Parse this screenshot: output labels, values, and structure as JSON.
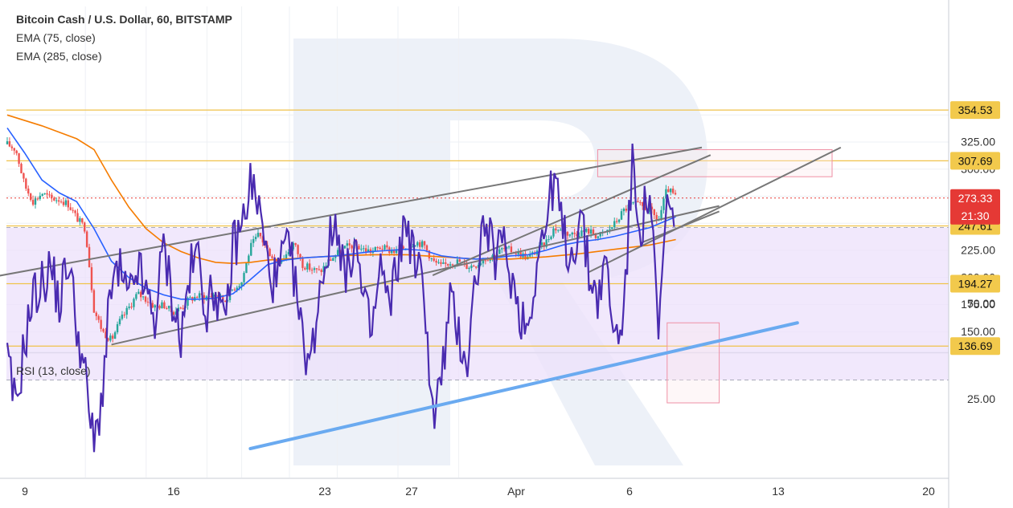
{
  "colors": {
    "candle_up": "#26a69a",
    "candle_down": "#ef5350",
    "ema75": "#2962ff",
    "ema285": "#f57c00",
    "hline": "#f0c24a",
    "hline_label_bg": "#f2c94c",
    "trendline": "#777777",
    "rsi_line": "#4a2bb0",
    "rsi_band": "#ece0fb",
    "rsi_trend": "#6aaaf0",
    "box": "#ef8fa4",
    "price_tag": "#e53935",
    "grid": "#eef0f4",
    "watermark": "#dfe6f3"
  },
  "chart_data": [
    {
      "type": "candlestick",
      "title": "Bitcoin Cash / U.S. Dollar, 60, BITSTAMP",
      "legend": [
        "EMA (75, close)",
        "EMA (285, close)"
      ],
      "x_ticks": [
        "9",
        "16",
        "23",
        "27",
        "Apr",
        "6",
        "13",
        "20"
      ],
      "y_ticks": [
        150.0,
        175.0,
        200.0,
        225.0,
        250.0,
        275.0,
        300.0,
        325.0,
        350.0
      ],
      "ylim": [
        134,
        362
      ],
      "grid": true,
      "horizontal_levels": [
        354.53,
        307.69,
        247.61,
        194.27,
        136.69
      ],
      "last_price": 273.33,
      "countdown": "21:30",
      "price_path": [
        [
          0,
          323
        ],
        [
          1,
          318
        ],
        [
          2,
          285
        ],
        [
          3,
          270
        ],
        [
          4,
          278
        ],
        [
          5,
          273
        ],
        [
          6,
          272
        ],
        [
          7,
          268
        ],
        [
          8,
          255
        ],
        [
          9,
          245
        ],
        [
          10,
          170
        ],
        [
          11,
          150
        ],
        [
          12,
          142
        ],
        [
          13,
          160
        ],
        [
          14,
          172
        ],
        [
          15,
          185
        ],
        [
          16,
          180
        ],
        [
          17,
          173
        ],
        [
          18,
          175
        ],
        [
          19,
          168
        ],
        [
          20,
          172
        ],
        [
          21,
          180
        ],
        [
          22,
          183
        ],
        [
          23,
          182
        ],
        [
          24,
          185
        ],
        [
          25,
          178
        ],
        [
          26,
          190
        ],
        [
          27,
          196
        ],
        [
          28,
          228
        ],
        [
          29,
          240
        ],
        [
          30,
          225
        ],
        [
          31,
          215
        ],
        [
          32,
          220
        ],
        [
          33,
          232
        ],
        [
          34,
          212
        ],
        [
          35,
          208
        ],
        [
          36,
          205
        ],
        [
          37,
          215
        ],
        [
          38,
          222
        ],
        [
          39,
          228
        ],
        [
          40,
          230
        ],
        [
          41,
          226
        ],
        [
          42,
          224
        ],
        [
          43,
          228
        ],
        [
          44,
          225
        ],
        [
          45,
          224
        ],
        [
          46,
          228
        ],
        [
          47,
          233
        ],
        [
          48,
          230
        ],
        [
          49,
          215
        ],
        [
          50,
          210
        ],
        [
          51,
          214
        ],
        [
          52,
          215
        ],
        [
          53,
          210
        ],
        [
          54,
          212
        ],
        [
          55,
          218
        ],
        [
          56,
          220
        ],
        [
          57,
          226
        ],
        [
          58,
          225
        ],
        [
          59,
          222
        ],
        [
          60,
          218
        ],
        [
          61,
          225
        ],
        [
          62,
          232
        ],
        [
          63,
          246
        ],
        [
          64,
          242
        ],
        [
          65,
          240
        ],
        [
          66,
          242
        ],
        [
          67,
          243
        ],
        [
          68,
          238
        ],
        [
          69,
          242
        ],
        [
          70,
          250
        ],
        [
          71,
          262
        ],
        [
          72,
          268
        ],
        [
          73,
          266
        ],
        [
          74,
          262
        ],
        [
          75,
          252
        ],
        [
          76,
          282
        ],
        [
          77,
          274
        ]
      ],
      "ema75": [
        [
          0,
          338
        ],
        [
          2,
          315
        ],
        [
          4,
          290
        ],
        [
          6,
          278
        ],
        [
          8,
          270
        ],
        [
          10,
          245
        ],
        [
          12,
          215
        ],
        [
          14,
          200
        ],
        [
          16,
          190
        ],
        [
          18,
          184
        ],
        [
          20,
          180
        ],
        [
          22,
          180
        ],
        [
          24,
          181
        ],
        [
          26,
          185
        ],
        [
          28,
          198
        ],
        [
          30,
          212
        ],
        [
          32,
          216
        ],
        [
          34,
          218
        ],
        [
          36,
          219
        ],
        [
          38,
          220
        ],
        [
          40,
          222
        ],
        [
          42,
          224
        ],
        [
          44,
          225
        ],
        [
          46,
          226
        ],
        [
          48,
          225
        ],
        [
          50,
          220
        ],
        [
          52,
          218
        ],
        [
          54,
          217
        ],
        [
          56,
          218
        ],
        [
          58,
          220
        ],
        [
          60,
          221
        ],
        [
          62,
          225
        ],
        [
          64,
          230
        ],
        [
          66,
          233
        ],
        [
          68,
          235
        ],
        [
          70,
          238
        ],
        [
          72,
          242
        ],
        [
          74,
          246
        ],
        [
          77,
          256
        ]
      ],
      "ema285": [
        [
          0,
          350
        ],
        [
          4,
          340
        ],
        [
          8,
          328
        ],
        [
          10,
          318
        ],
        [
          12,
          290
        ],
        [
          14,
          265
        ],
        [
          16,
          245
        ],
        [
          18,
          232
        ],
        [
          20,
          224
        ],
        [
          22,
          218
        ],
        [
          24,
          214
        ],
        [
          26,
          213
        ],
        [
          28,
          214
        ],
        [
          30,
          216
        ],
        [
          34,
          218
        ],
        [
          38,
          220
        ],
        [
          42,
          221
        ],
        [
          46,
          221
        ],
        [
          50,
          219
        ],
        [
          54,
          217
        ],
        [
          58,
          217
        ],
        [
          62,
          219
        ],
        [
          66,
          222
        ],
        [
          70,
          226
        ],
        [
          74,
          230
        ],
        [
          77,
          235
        ]
      ],
      "trendlines": [
        [
          [
            -2,
            200
          ],
          [
            80,
            320
          ]
        ],
        [
          [
            12,
            138
          ],
          [
            82,
            266
          ]
        ],
        [
          [
            49,
            202
          ],
          [
            81,
            313
          ]
        ],
        [
          [
            67,
            205
          ],
          [
            96,
            320
          ]
        ],
        [
          [
            73,
            232
          ],
          [
            82,
            261
          ]
        ]
      ],
      "zone": {
        "x0": 68,
        "x1": 95,
        "y0": 293,
        "y1": 318
      }
    },
    {
      "type": "line",
      "title": "RSI (13, close)",
      "y_ticks": [
        25.0,
        50.0,
        75.0
      ],
      "ylim": [
        5,
        95
      ],
      "band": [
        30,
        70
      ],
      "rsi_path": [
        [
          0,
          35
        ],
        [
          1,
          22
        ],
        [
          2,
          40
        ],
        [
          3,
          52
        ],
        [
          4,
          55
        ],
        [
          5,
          60
        ],
        [
          6,
          50
        ],
        [
          7,
          62
        ],
        [
          8,
          45
        ],
        [
          9,
          30
        ],
        [
          10,
          12
        ],
        [
          11,
          28
        ],
        [
          12,
          55
        ],
        [
          13,
          58
        ],
        [
          14,
          50
        ],
        [
          15,
          60
        ],
        [
          16,
          52
        ],
        [
          17,
          46
        ],
        [
          18,
          65
        ],
        [
          19,
          52
        ],
        [
          20,
          40
        ],
        [
          21,
          58
        ],
        [
          22,
          63
        ],
        [
          23,
          48
        ],
        [
          24,
          55
        ],
        [
          25,
          42
        ],
        [
          26,
          65
        ],
        [
          27,
          70
        ],
        [
          28,
          82
        ],
        [
          29,
          75
        ],
        [
          30,
          60
        ],
        [
          31,
          55
        ],
        [
          32,
          65
        ],
        [
          33,
          58
        ],
        [
          34,
          40
        ],
        [
          35,
          35
        ],
        [
          36,
          55
        ],
        [
          37,
          65
        ],
        [
          38,
          72
        ],
        [
          39,
          55
        ],
        [
          40,
          68
        ],
        [
          41,
          50
        ],
        [
          42,
          42
        ],
        [
          43,
          60
        ],
        [
          44,
          48
        ],
        [
          45,
          62
        ],
        [
          46,
          72
        ],
        [
          47,
          60
        ],
        [
          48,
          55
        ],
        [
          49,
          20
        ],
        [
          50,
          30
        ],
        [
          51,
          50
        ],
        [
          52,
          42
        ],
        [
          53,
          35
        ],
        [
          54,
          58
        ],
        [
          55,
          72
        ],
        [
          56,
          62
        ],
        [
          57,
          66
        ],
        [
          58,
          58
        ],
        [
          59,
          48
        ],
        [
          60,
          44
        ],
        [
          61,
          62
        ],
        [
          62,
          70
        ],
        [
          63,
          84
        ],
        [
          64,
          68
        ],
        [
          65,
          62
        ],
        [
          66,
          74
        ],
        [
          67,
          58
        ],
        [
          68,
          52
        ],
        [
          69,
          60
        ],
        [
          70,
          40
        ],
        [
          71,
          48
        ],
        [
          72,
          86
        ],
        [
          73,
          70
        ],
        [
          74,
          80
        ],
        [
          75,
          40
        ],
        [
          76,
          78
        ],
        [
          77,
          64
        ]
      ],
      "trendline": [
        [
          28,
          12
        ],
        [
          91,
          45
        ]
      ],
      "zone": {
        "x0": 76,
        "x1": 82,
        "y0": 24,
        "y1": 45
      }
    }
  ]
}
